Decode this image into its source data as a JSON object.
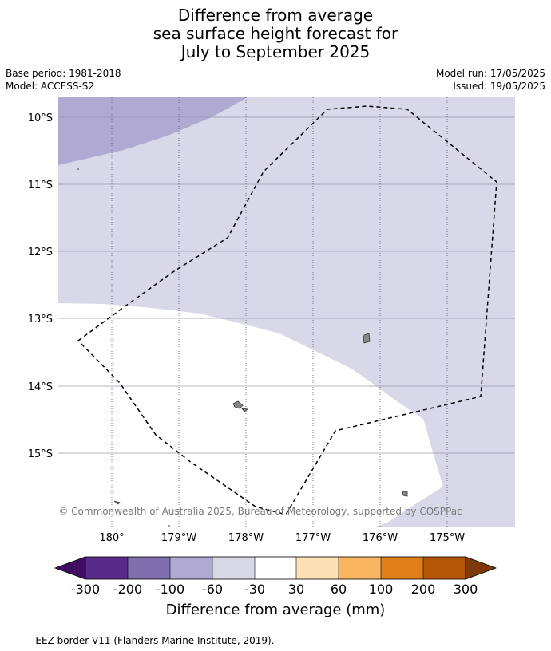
{
  "title": {
    "line1": "Difference from average",
    "line2": "sea surface height forecast for",
    "line3": "July to September 2025"
  },
  "meta": {
    "base_period": "Base period: 1981-2018",
    "model": "Model: ACCESS-S2",
    "model_run": "Model run: 17/05/2025",
    "issued": "Issued: 19/05/2025"
  },
  "map": {
    "latitude_labels": [
      "10°S",
      "11°S",
      "12°S",
      "13°S",
      "14°S",
      "15°S"
    ],
    "longitude_labels": [
      "180°",
      "179°W",
      "178°W",
      "177°W",
      "176°W",
      "175°W"
    ],
    "copyright": "© Commonwealth of Australia 2025, Bureau of Meteorology, supported by COSPPac",
    "colors": {
      "minus_100_to_minus_60": "#b0a9d1",
      "minus_60_to_minus_30": "#d8d8e9",
      "minus_30_to_30": "#ffffff"
    }
  },
  "colorbar": {
    "title": "Difference from average (mm)",
    "tick_labels": [
      "-300",
      "-200",
      "-100",
      "-60",
      "-30",
      "30",
      "60",
      "100",
      "200",
      "300"
    ],
    "colors": [
      "#3f0d5f",
      "#5a2a8b",
      "#7d6fad",
      "#b0a9d1",
      "#d8d8e9",
      "#ffffff",
      "#fde0b5",
      "#f9b55f",
      "#e07f18",
      "#b45507",
      "#7e3a09"
    ]
  },
  "footnote": "--  --  -- EEZ border V11 (Flanders Marine Institute, 2019)."
}
